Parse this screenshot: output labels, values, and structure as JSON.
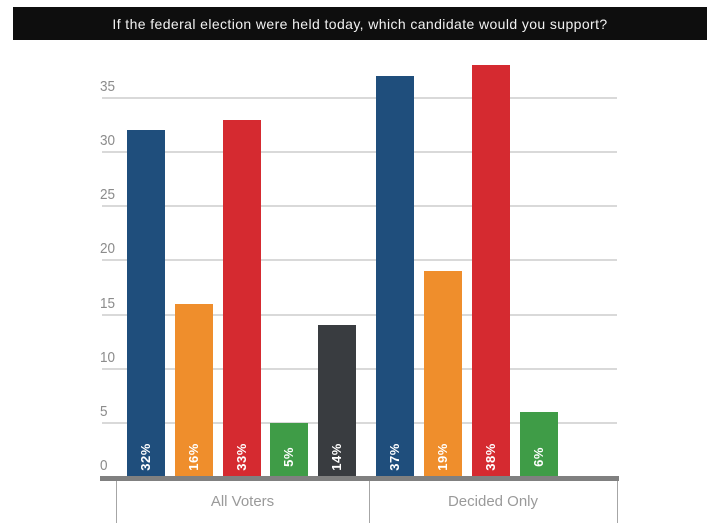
{
  "banner": {
    "title": "If the federal election were held today, which candidate would you support?",
    "background": "#0e0e0e",
    "text_color": "#f2f2f2"
  },
  "chart_data": {
    "type": "bar",
    "title": "If the federal election were held today, which candidate would you support?",
    "categories": [
      "All Voters",
      "Decided Only"
    ],
    "series": [
      {
        "name": "blue-bar",
        "color": "#1f4e7c",
        "values": [
          32,
          37
        ],
        "labels": [
          "32%",
          "37%"
        ]
      },
      {
        "name": "orange-bar",
        "color": "#ef8e2c",
        "values": [
          16,
          19
        ],
        "labels": [
          "16%",
          "19%"
        ]
      },
      {
        "name": "red-bar",
        "color": "#d52a30",
        "values": [
          33,
          38
        ],
        "labels": [
          "33%",
          "38%"
        ]
      },
      {
        "name": "green-bar",
        "color": "#3f9c47",
        "values": [
          5,
          6
        ],
        "labels": [
          "5%",
          "6%"
        ]
      },
      {
        "name": "dark-gray-bar",
        "color": "#393c40",
        "values": [
          14,
          null
        ],
        "labels": [
          "14%",
          null
        ]
      }
    ],
    "yticks": [
      0,
      5,
      10,
      15,
      20,
      25,
      30,
      35
    ],
    "ylim": [
      0,
      38.5
    ],
    "grid": true,
    "legend": "none",
    "value_labels": "inside-bottom-rotated",
    "axis_color": "#808080",
    "gridline_color": "#d9d9d9",
    "tick_label_color": "#8c8c8c",
    "category_label_color": "#9a9a9a"
  }
}
